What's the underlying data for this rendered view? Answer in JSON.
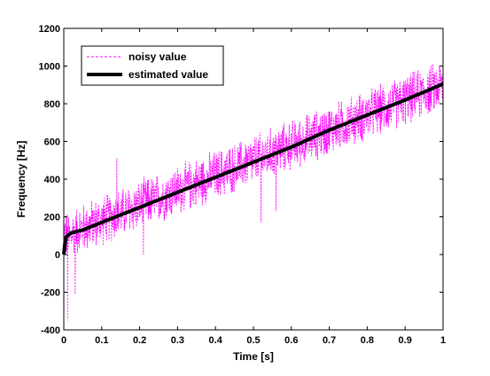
{
  "chart_data": {
    "type": "line",
    "title": "",
    "xlabel": "Time [s]",
    "ylabel": "Frequency [Hz]",
    "xlim": [
      0,
      1
    ],
    "ylim": [
      -400,
      1200
    ],
    "x_ticks": [
      0,
      0.1,
      0.2,
      0.3,
      0.4,
      0.5,
      0.6,
      0.7,
      0.8,
      0.9,
      1
    ],
    "x_tick_labels": [
      "0",
      "0.1",
      "0.2",
      "0.3",
      "0.4",
      "0.5",
      "0.6",
      "0.7",
      "0.8",
      "0.9",
      "1"
    ],
    "y_ticks": [
      -400,
      -200,
      0,
      200,
      400,
      600,
      800,
      1000,
      1200
    ],
    "y_tick_labels": [
      "-400",
      "-200",
      "0",
      "200",
      "400",
      "600",
      "800",
      "1000",
      "1200"
    ],
    "grid": false,
    "legend_position": "top-left",
    "series": [
      {
        "name": "noisy value",
        "color": "#ff00ff",
        "style": "dashed",
        "trend": {
          "x": [
            0,
            1
          ],
          "y": [
            100,
            900
          ]
        },
        "approx_range_around_trend": 150,
        "outliers": [
          {
            "x": 0.01,
            "y": -350
          },
          {
            "x": 0.03,
            "y": -210
          },
          {
            "x": 0.14,
            "y": 510
          },
          {
            "x": 0.21,
            "y": 0
          },
          {
            "x": 0.52,
            "y": 170
          },
          {
            "x": 0.56,
            "y": 230
          },
          {
            "x": 0.99,
            "y": 1000
          }
        ]
      },
      {
        "name": "estimated value",
        "color": "#000000",
        "style": "solid",
        "x": [
          0,
          0.003,
          0.006,
          0.01,
          0.02,
          0.05,
          0.1,
          0.2,
          0.3,
          0.4,
          0.5,
          0.6,
          0.7,
          0.8,
          0.9,
          1
        ],
        "y": [
          0,
          60,
          90,
          100,
          115,
          130,
          170,
          250,
          330,
          410,
          490,
          570,
          660,
          740,
          820,
          905
        ]
      }
    ]
  }
}
